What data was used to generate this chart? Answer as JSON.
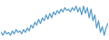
{
  "values": [
    5,
    3,
    6,
    4,
    5,
    3,
    6,
    4,
    7,
    5,
    6,
    4,
    7,
    5,
    8,
    6,
    10,
    8,
    12,
    10,
    14,
    11,
    15,
    13,
    17,
    14,
    18,
    15,
    19,
    17,
    20,
    18,
    21,
    19,
    22,
    20,
    21,
    19,
    22,
    20,
    23,
    19,
    22,
    17,
    23,
    18,
    22,
    15,
    21,
    13,
    17,
    8,
    13,
    5,
    9,
    3,
    8,
    11
  ],
  "line_color": "#5b9dc9",
  "bg_color": "#ffffff",
  "linewidth": 0.9
}
